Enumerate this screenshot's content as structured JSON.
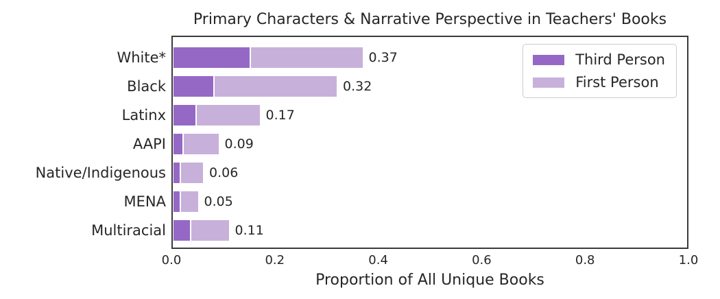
{
  "colors": {
    "third_person": "#9668c6",
    "first_person": "#c7b1da",
    "axis_border": "#3a3a3a",
    "text": "#262626",
    "legend_border": "#cccccc"
  },
  "chart_data": {
    "type": "bar",
    "orientation": "horizontal",
    "stacked": true,
    "title": "Primary Characters & Narrative Perspective in Teachers' Books",
    "xlabel": "Proportion of All Unique Books",
    "ylabel": "",
    "xlim": [
      0.0,
      1.0
    ],
    "x_tick_labels": [
      "0.0",
      "0.2",
      "0.4",
      "0.6",
      "0.8",
      "1.0"
    ],
    "x_tick_values": [
      0.0,
      0.2,
      0.4,
      0.6,
      0.8,
      1.0
    ],
    "grid": false,
    "legend_position": "upper right",
    "categories": [
      "White*",
      "Black",
      "Latinx",
      "AAPI",
      "Native/Indigenous",
      "MENA",
      "Multiracial"
    ],
    "series": [
      {
        "name": "Third Person",
        "values": [
          0.15,
          0.08,
          0.045,
          0.02,
          0.015,
          0.015,
          0.035
        ]
      },
      {
        "name": "First Person",
        "values": [
          0.22,
          0.24,
          0.125,
          0.07,
          0.045,
          0.035,
          0.075
        ]
      }
    ],
    "totals": [
      0.37,
      0.32,
      0.17,
      0.09,
      0.06,
      0.05,
      0.11
    ],
    "total_labels": [
      "0.37",
      "0.32",
      "0.17",
      "0.09",
      "0.06",
      "0.05",
      "0.11"
    ]
  }
}
